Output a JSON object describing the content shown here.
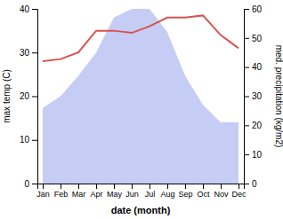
{
  "chart_data": {
    "type": "line",
    "categories": [
      "Jan",
      "Feb",
      "Mar",
      "Apr",
      "May",
      "Jun",
      "Jul",
      "Aug",
      "Sep",
      "Oct",
      "Nov",
      "Dec"
    ],
    "series": [
      {
        "type": "area",
        "axis": "y2",
        "color": "#c5cdf5",
        "values": [
          26,
          30,
          37,
          45,
          57,
          60,
          60,
          52,
          37,
          27,
          21,
          21
        ]
      },
      {
        "type": "line",
        "color": "#d9534f",
        "values": [
          28,
          28.5,
          30,
          35,
          35,
          34.5,
          36,
          38,
          38,
          38.5,
          34,
          31
        ]
      }
    ],
    "xlabel": "date (month)",
    "ylabel": "max temp (C)",
    "y2label": "med. precipitation (kg/m2)",
    "ylim": [
      0,
      40
    ],
    "yticks": [
      0,
      10,
      20,
      30,
      40
    ],
    "y2lim": [
      0,
      60
    ],
    "y2ticks": [
      0,
      10,
      20,
      30,
      40,
      50,
      60
    ],
    "grid": false
  }
}
